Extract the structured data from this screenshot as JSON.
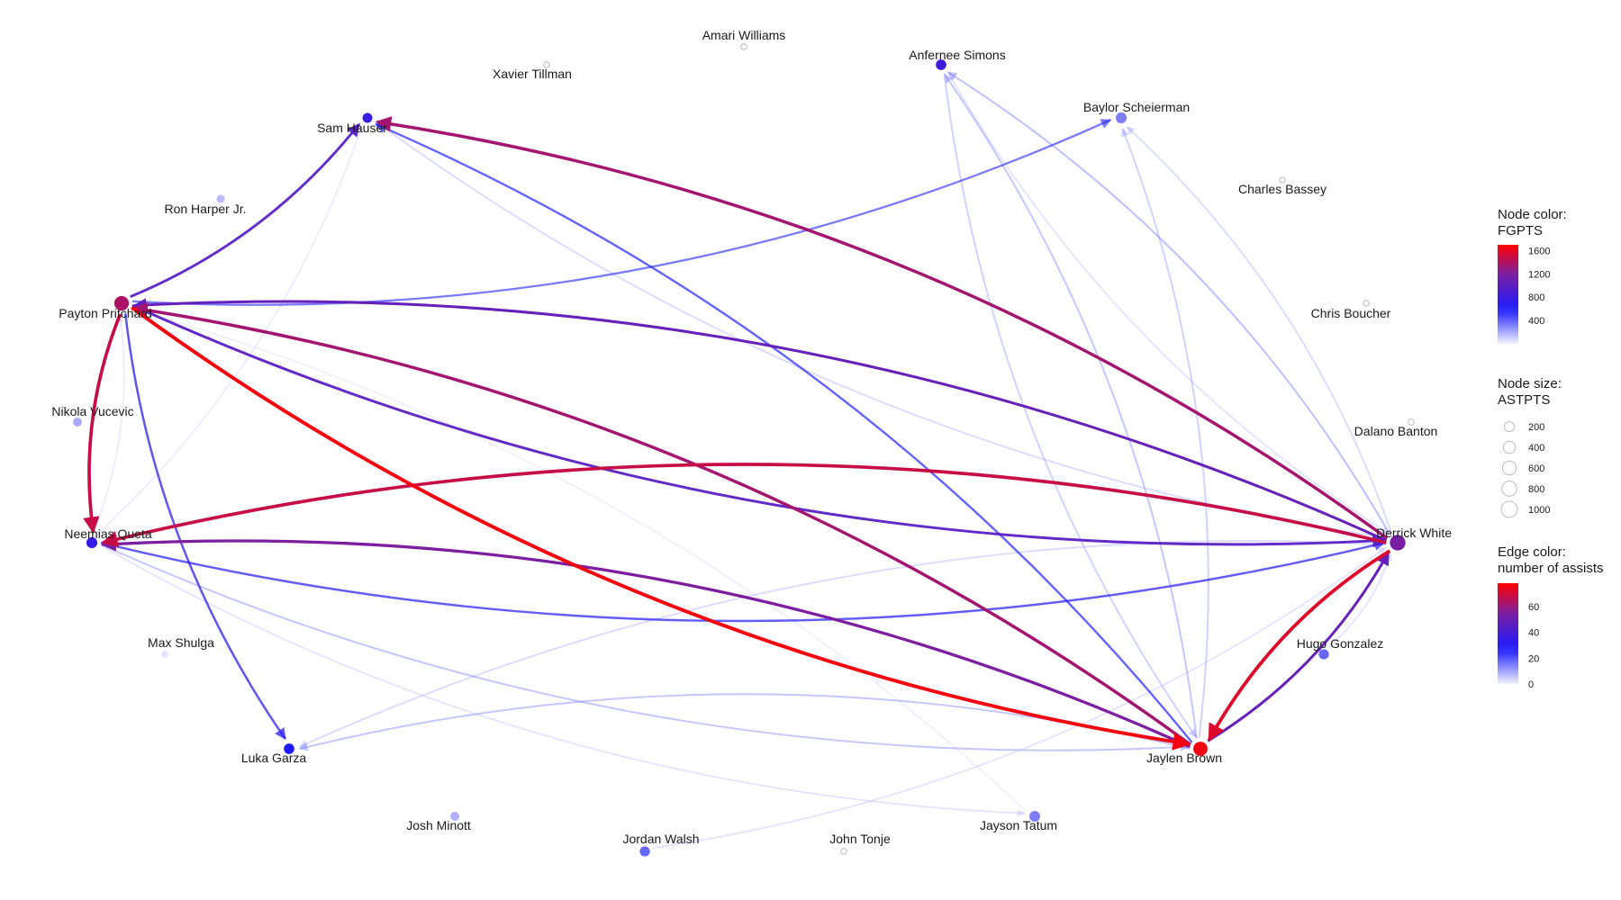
{
  "colors": {
    "low": "#f2f2ff",
    "mid": "#1a1aff",
    "purple": "#7a1fa2",
    "high": "#ff0000"
  },
  "nodes": [
    {
      "id": "amari",
      "label": "Amari Williams",
      "fgpts": 0,
      "astpts": 0
    },
    {
      "id": "xavier",
      "label": "Xavier Tillman",
      "fgpts": 0,
      "astpts": 0
    },
    {
      "id": "anfernee",
      "label": "Anfernee Simons",
      "fgpts": 820,
      "astpts": 150
    },
    {
      "id": "sam",
      "label": "Sam Hauser",
      "fgpts": 780,
      "astpts": 110
    },
    {
      "id": "baylor",
      "label": "Baylor Scheierman",
      "fgpts": 320,
      "astpts": 180
    },
    {
      "id": "charles",
      "label": "Charles Bassey",
      "fgpts": 0,
      "astpts": 0
    },
    {
      "id": "ron",
      "label": "Ron Harper Jr.",
      "fgpts": 150,
      "astpts": 40
    },
    {
      "id": "payton",
      "label": "Payton Pritchard",
      "fgpts": 1380,
      "astpts": 520
    },
    {
      "id": "chris",
      "label": "Chris Boucher",
      "fgpts": 0,
      "astpts": 0
    },
    {
      "id": "nikola",
      "label": "Nikola Vucevic",
      "fgpts": 200,
      "astpts": 60
    },
    {
      "id": "dalano",
      "label": "Dalano Banton",
      "fgpts": 0,
      "astpts": 0
    },
    {
      "id": "neemias",
      "label": "Neemias Queta",
      "fgpts": 760,
      "astpts": 180
    },
    {
      "id": "derrick",
      "label": "Derrick White",
      "fgpts": 1180,
      "astpts": 650
    },
    {
      "id": "max",
      "label": "Max Shulga",
      "fgpts": 40,
      "astpts": 10
    },
    {
      "id": "hugo",
      "label": "Hugo Gonzalez",
      "fgpts": 380,
      "astpts": 130
    },
    {
      "id": "luka",
      "label": "Luka Garza",
      "fgpts": 620,
      "astpts": 150
    },
    {
      "id": "jaylen",
      "label": "Jaylen Brown",
      "fgpts": 1650,
      "astpts": 480
    },
    {
      "id": "josh",
      "label": "Josh Minott",
      "fgpts": 180,
      "astpts": 70
    },
    {
      "id": "jayson",
      "label": "Jayson Tatum",
      "fgpts": 320,
      "astpts": 170
    },
    {
      "id": "jordan",
      "label": "Jordan Walsh",
      "fgpts": 380,
      "astpts": 130
    },
    {
      "id": "john",
      "label": "John Tonje",
      "fgpts": 0,
      "astpts": 0
    }
  ],
  "edges": [
    {
      "from": "payton",
      "to": "jaylen",
      "assists": 76
    },
    {
      "from": "derrick",
      "to": "jaylen",
      "assists": 72
    },
    {
      "from": "jaylen",
      "to": "neemias",
      "assists": 55
    },
    {
      "from": "derrick",
      "to": "neemias",
      "assists": 68
    },
    {
      "from": "derrick",
      "to": "sam",
      "assists": 62
    },
    {
      "from": "jaylen",
      "to": "payton",
      "assists": 62
    },
    {
      "from": "payton",
      "to": "neemias",
      "assists": 68
    },
    {
      "from": "derrick",
      "to": "payton",
      "assists": 48
    },
    {
      "from": "payton",
      "to": "derrick",
      "assists": 45
    },
    {
      "from": "payton",
      "to": "sam",
      "assists": 44
    },
    {
      "from": "jaylen",
      "to": "derrick",
      "assists": 48
    },
    {
      "from": "neemias",
      "to": "derrick",
      "assists": 30
    },
    {
      "from": "payton",
      "to": "luka",
      "assists": 32
    },
    {
      "from": "payton",
      "to": "baylor",
      "assists": 25
    },
    {
      "from": "jaylen",
      "to": "sam",
      "assists": 28
    },
    {
      "from": "derrick",
      "to": "anfernee",
      "assists": 15
    },
    {
      "from": "jaylen",
      "to": "anfernee",
      "assists": 14
    },
    {
      "from": "jaylen",
      "to": "baylor",
      "assists": 12
    },
    {
      "from": "anfernee",
      "to": "jaylen",
      "assists": 12
    },
    {
      "from": "derrick",
      "to": "baylor",
      "assists": 10
    },
    {
      "from": "anfernee",
      "to": "derrick",
      "assists": 8
    },
    {
      "from": "jaylen",
      "to": "luka",
      "assists": 14
    },
    {
      "from": "derrick",
      "to": "luka",
      "assists": 10
    },
    {
      "from": "neemias",
      "to": "jaylen",
      "assists": 14
    },
    {
      "from": "jordan",
      "to": "derrick",
      "assists": 8
    },
    {
      "from": "neemias",
      "to": "jayson",
      "assists": 8
    },
    {
      "from": "jayson",
      "to": "payton",
      "assists": 5
    },
    {
      "from": "neemias",
      "to": "sam",
      "assists": 6
    },
    {
      "from": "hugo",
      "to": "derrick",
      "assists": 8
    },
    {
      "from": "neemias",
      "to": "payton",
      "assists": 6
    },
    {
      "from": "sam",
      "to": "derrick",
      "assists": 10
    }
  ],
  "legend": {
    "fill": {
      "title_line1": "Node color:",
      "title_line2": "FGPTS",
      "ticks": [
        "1600",
        "1200",
        "800",
        "400"
      ],
      "values": [
        1600,
        1200,
        800,
        400
      ],
      "min": 0,
      "max": 1700
    },
    "size": {
      "title_line1": "Node size:",
      "title_line2": "ASTPTS",
      "ticks": [
        "200",
        "400",
        "600",
        "800",
        "1000"
      ],
      "values": [
        200,
        400,
        600,
        800,
        1000
      ]
    },
    "edge": {
      "title_line1": "Edge color:",
      "title_line2": "number of assists",
      "ticks": [
        "60",
        "40",
        "20",
        "0"
      ],
      "values": [
        60,
        40,
        20,
        0
      ],
      "min": 0,
      "max": 78
    }
  }
}
